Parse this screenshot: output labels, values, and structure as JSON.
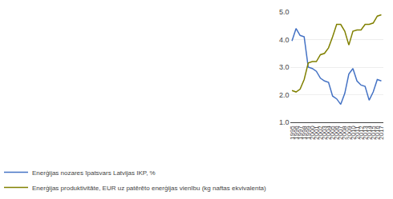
{
  "chart_data": {
    "type": "line",
    "x": [
      1995,
      1996,
      1997,
      1998,
      1999,
      2000,
      2001,
      2002,
      2003,
      2004,
      2005,
      2006,
      2007,
      2008,
      2009,
      2010,
      2011,
      2012,
      2013,
      2014,
      2015,
      2016,
      2017
    ],
    "series": [
      {
        "name": "Enerģijas nozares īpatsvars Latvijas IKP, %",
        "color": "#4472C4",
        "values": [
          3.95,
          4.4,
          4.15,
          4.1,
          3.0,
          2.95,
          2.85,
          2.6,
          2.5,
          2.45,
          1.95,
          1.85,
          1.65,
          2.05,
          2.75,
          2.95,
          2.5,
          2.35,
          2.3,
          1.8,
          2.1,
          2.55,
          2.5
        ]
      },
      {
        "name": "Enerģijas produktivitāte, EUR uz patērēto enerģijas vienību (kg naftas ekvivalenta)",
        "color": "#808000",
        "values": [
          2.15,
          2.1,
          2.2,
          2.55,
          3.15,
          3.2,
          3.2,
          3.45,
          3.5,
          3.7,
          4.1,
          4.55,
          4.55,
          4.3,
          3.8,
          4.3,
          4.35,
          4.35,
          4.55,
          4.55,
          4.6,
          4.85,
          4.9
        ]
      }
    ],
    "xlim": [
      1994.5,
      2017.5
    ],
    "xticks": [
      1995,
      1996,
      1997,
      1998,
      1999,
      2000,
      2001,
      2002,
      2003,
      2004,
      2005,
      2006,
      2007,
      2008,
      2009,
      2010,
      2011,
      2012,
      2013,
      2014,
      2015,
      2016,
      2017
    ],
    "ylim": [
      1.0,
      5.0
    ],
    "yticks": [
      {
        "value": 1.0,
        "label": "1.0"
      },
      {
        "value": 2.0,
        "label": "2.0"
      },
      {
        "value": 3.0,
        "label": "3.0"
      },
      {
        "value": 4.0,
        "label": "4.0"
      },
      {
        "value": 5.0,
        "label": "5.0"
      }
    ],
    "grid": true,
    "legend": "bottom"
  }
}
